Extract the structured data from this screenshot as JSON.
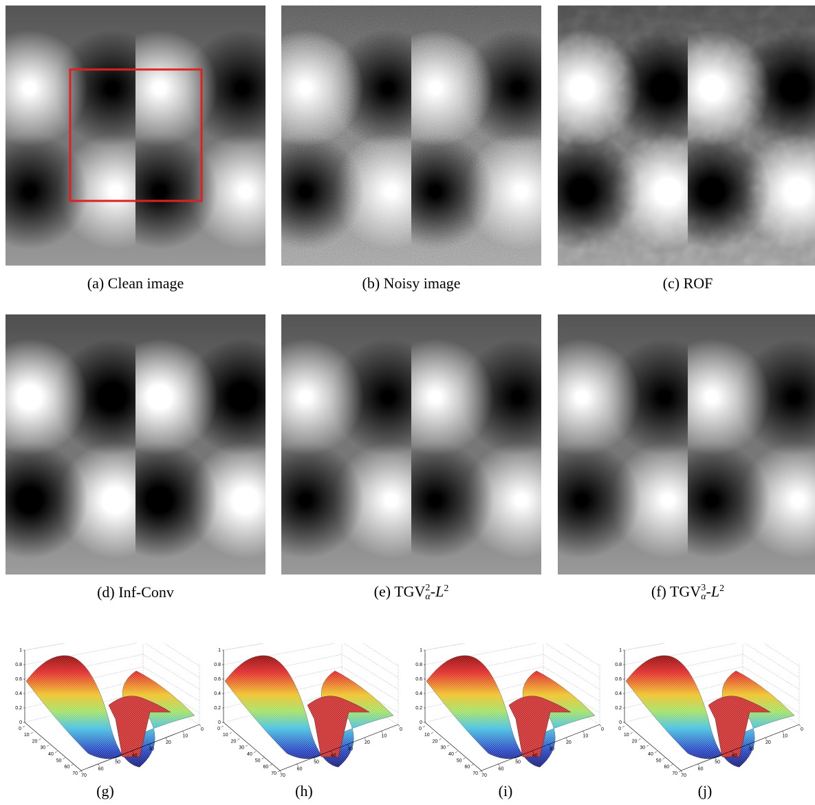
{
  "panels": [
    {
      "label": "(a)",
      "caption": "Clean image"
    },
    {
      "label": "(b)",
      "caption": "Noisy image"
    },
    {
      "label": "(c)",
      "caption": "ROF"
    },
    {
      "label": "(d)",
      "caption": "Inf-Conv"
    },
    {
      "label": "(e)",
      "caption": {
        "norm": "TGV",
        "order": "2",
        "weight": "α",
        "sep": "-",
        "space": "L",
        "exponent": "2"
      }
    },
    {
      "label": "(f)",
      "caption": {
        "norm": "TGV",
        "order": "3",
        "weight": "α",
        "sep": "-",
        "space": "L",
        "exponent": "2"
      }
    }
  ],
  "surface_plots": [
    {
      "label": "(g)"
    },
    {
      "label": "(h)"
    },
    {
      "label": "(i)"
    },
    {
      "label": "(j)"
    }
  ],
  "plot_axes": {
    "z_ticks": [
      0,
      0.2,
      0.4,
      0.6,
      0.8,
      1
    ],
    "xy_ticks": [
      0,
      10,
      20,
      30,
      40,
      50,
      60,
      70
    ]
  }
}
